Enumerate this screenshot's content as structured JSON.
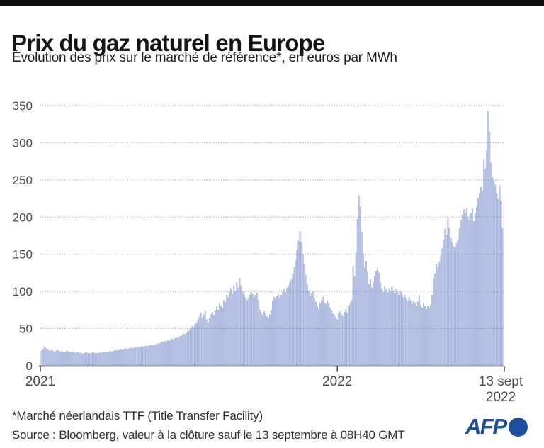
{
  "header": {
    "title": "Prix du gaz naturel en Europe",
    "subtitle": "Évolution des prix sur le marché de référence*, en euros par MWh"
  },
  "footer": {
    "footnote": "*Marché néerlandais TTF (Title Transfer Facility)",
    "source": "Source : Bloomberg, valeur à la clôture sauf le 13 septembre à 08H40 GMT",
    "logo_text": "AFP"
  },
  "colors": {
    "top_bar": "#0d0d0d",
    "bar_fill": "#c0c9e9",
    "bar_edge": "#9fadd8",
    "grid": "#6f6f6f",
    "axis": "#3d3d3d",
    "label": "#4b4b4b",
    "afp_blue": "#1e4f9c"
  },
  "chart_data": {
    "type": "bar",
    "title": "Prix du gaz naturel en Europe",
    "ylabel": "euros par MWh",
    "ylim": [
      0,
      350
    ],
    "yticks": [
      0,
      50,
      100,
      150,
      200,
      250,
      300,
      350
    ],
    "grid": "horizontal dotted",
    "legend": "none",
    "xticks": [
      {
        "label": "2021",
        "lines": [
          "2021"
        ],
        "frac": 0.0
      },
      {
        "label": "2022",
        "lines": [
          "2022"
        ],
        "frac": 0.64
      },
      {
        "label": "13 sept 2022",
        "lines": [
          "13 sept",
          "2022"
        ],
        "frac": 1.0
      }
    ],
    "annotations": {
      "peak_oct_2021": 118,
      "peak_dec_2021": 181,
      "peak_mars_2022": 229,
      "peak_aout_2022": 342,
      "dernier_13_sept_2022": 185
    },
    "values": [
      20,
      22,
      26,
      24,
      22,
      21,
      20,
      21,
      20,
      19,
      20,
      21,
      20,
      19,
      20,
      19,
      18,
      19,
      20,
      19,
      18,
      18,
      19,
      18,
      17,
      18,
      18,
      17,
      17,
      16,
      17,
      18,
      17,
      16,
      17,
      17,
      18,
      17,
      16,
      17,
      17,
      18,
      17,
      18,
      19,
      18,
      19,
      19,
      20,
      19,
      20,
      20,
      21,
      20,
      21,
      22,
      21,
      22,
      22,
      23,
      22,
      23,
      24,
      23,
      24,
      24,
      25,
      24,
      25,
      26,
      25,
      26,
      26,
      27,
      26,
      27,
      28,
      27,
      28,
      28,
      29,
      30,
      29,
      31,
      32,
      31,
      33,
      32,
      34,
      33,
      35,
      36,
      35,
      37,
      38,
      37,
      39,
      40,
      41,
      43,
      42,
      44,
      46,
      48,
      50,
      53,
      51,
      55,
      58,
      62,
      66,
      71,
      64,
      68,
      73,
      62,
      58,
      64,
      69,
      72,
      68,
      74,
      79,
      75,
      84,
      80,
      77,
      88,
      85,
      95,
      92,
      99,
      104,
      96,
      108,
      100,
      112,
      105,
      118,
      108,
      100,
      96,
      92,
      88,
      91,
      95,
      99,
      96,
      92,
      95,
      98,
      88,
      75,
      70,
      68,
      73,
      70,
      66,
      64,
      69,
      74,
      88,
      92,
      90,
      94,
      96,
      91,
      95,
      99,
      103,
      98,
      105,
      108,
      112,
      116,
      124,
      133,
      142,
      155,
      168,
      181,
      166,
      150,
      136,
      122,
      110,
      101,
      94,
      97,
      99,
      90,
      86,
      80,
      76,
      84,
      88,
      92,
      85,
      83,
      88,
      84,
      78,
      74,
      70,
      68,
      65,
      62,
      70,
      73,
      68,
      66,
      72,
      76,
      71,
      80,
      84,
      88,
      134,
      120,
      152,
      197,
      229,
      214,
      180,
      150,
      132,
      141,
      126,
      110,
      116,
      105,
      112,
      120,
      127,
      131,
      125,
      112,
      104,
      99,
      107,
      103,
      98,
      104,
      100,
      106,
      101,
      97,
      103,
      99,
      95,
      100,
      96,
      92,
      95,
      90,
      86,
      92,
      88,
      83,
      87,
      84,
      80,
      86,
      95,
      82,
      78,
      84,
      80,
      76,
      80,
      78,
      82,
      95,
      118,
      124,
      137,
      132,
      140,
      148,
      158,
      170,
      184,
      176,
      199,
      185,
      172,
      166,
      160,
      159,
      165,
      170,
      185,
      195,
      203,
      210,
      205,
      211,
      200,
      196,
      205,
      211,
      194,
      205,
      213,
      225,
      232,
      240,
      235,
      278,
      265,
      290,
      342,
      315,
      273,
      254,
      248,
      243,
      232,
      224,
      243,
      222,
      185
    ]
  }
}
